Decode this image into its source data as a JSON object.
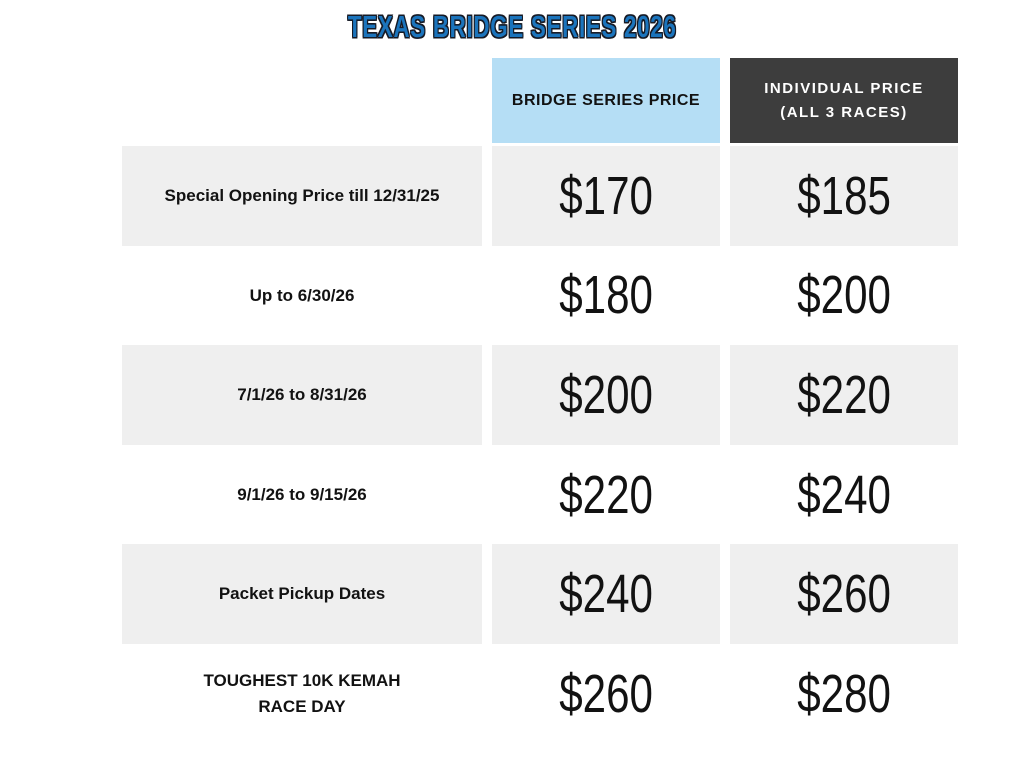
{
  "title": "TEXAS BRIDGE SERIES 2026",
  "colors": {
    "title_blue": "#1B74BC",
    "title_outline": "#161A25",
    "header_blue_bg": "#B5DEF5",
    "header_dark_bg": "#3D3D3D",
    "row_shade_bg": "#EFEFEF",
    "text_dark": "#121212"
  },
  "table": {
    "headers": {
      "series": "BRIDGE SERIES PRICE",
      "individual": "INDIVIDUAL PRICE\n(ALL 3 RACES)"
    },
    "rows": [
      {
        "label": "Special Opening Price till 12/31/25",
        "series": "$170",
        "individual": "$185",
        "shaded": true
      },
      {
        "label": "Up to 6/30/26",
        "series": "$180",
        "individual": "$200",
        "shaded": false
      },
      {
        "label": "7/1/26 to 8/31/26",
        "series": "$200",
        "individual": "$220",
        "shaded": true
      },
      {
        "label": "9/1/26 to 9/15/26",
        "series": "$220",
        "individual": "$240",
        "shaded": false
      },
      {
        "label": "Packet Pickup Dates",
        "series": "$240",
        "individual": "$260",
        "shaded": true
      },
      {
        "label": "TOUGHEST 10K KEMAH\nRACE DAY",
        "series": "$260",
        "individual": "$280",
        "shaded": false
      }
    ]
  },
  "chart_data": {
    "type": "table",
    "title": "TEXAS BRIDGE SERIES 2026",
    "columns": [
      "",
      "BRIDGE SERIES PRICE",
      "INDIVIDUAL PRICE (ALL 3 RACES)"
    ],
    "rows": [
      [
        "Special Opening Price till 12/31/25",
        "$170",
        "$185"
      ],
      [
        "Up to 6/30/26",
        "$180",
        "$200"
      ],
      [
        "7/1/26 to 8/31/26",
        "$200",
        "$220"
      ],
      [
        "9/1/26 to 9/15/26",
        "$220",
        "$240"
      ],
      [
        "Packet Pickup Dates",
        "$240",
        "$260"
      ],
      [
        "TOUGHEST 10K KEMAH RACE DAY",
        "$260",
        "$280"
      ]
    ],
    "series_prices_usd": [
      170,
      180,
      200,
      220,
      240,
      260
    ],
    "individual_prices_usd": [
      185,
      200,
      220,
      240,
      260,
      280
    ],
    "layout_hints": {
      "shaded_rows": [
        0,
        2,
        4
      ],
      "header_styles": [
        "none",
        "light-blue",
        "dark-gray"
      ]
    }
  }
}
